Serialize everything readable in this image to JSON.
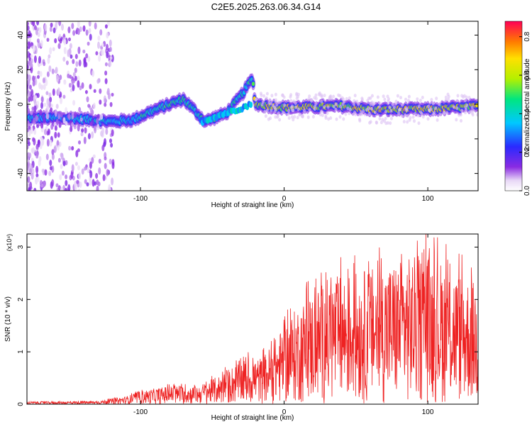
{
  "title": "C2E5.2025.263.06.34.G14",
  "chart_data": [
    {
      "type": "heatmap",
      "xlabel": "Height of straight line (km)",
      "ylabel": "Frequency (Hz)",
      "xlim": [
        -179,
        135
      ],
      "ylim": [
        -50,
        48
      ],
      "x_ticks": [
        -100,
        0,
        100
      ],
      "x_tick_labels": [
        "-100",
        "0",
        "100"
      ],
      "y_ticks": [
        -40,
        -20,
        0,
        20,
        40
      ],
      "y_tick_labels": [
        "-40",
        "-20",
        "0",
        "20",
        "40"
      ],
      "colorbar": {
        "label": "Normalized spectral amplitude",
        "range": [
          0,
          0.88
        ],
        "ticks": [
          0.0,
          0.2,
          0.4,
          0.6,
          0.8
        ],
        "tick_labels": [
          "0.0",
          "0.2",
          "0.4",
          "0.6",
          "0.8"
        ]
      },
      "ridge": [
        {
          "height_km": -179,
          "freq_hz": -8
        },
        {
          "height_km": -150,
          "freq_hz": -8
        },
        {
          "height_km": -120,
          "freq_hz": -10
        },
        {
          "height_km": -105,
          "freq_hz": -9
        },
        {
          "height_km": -95,
          "freq_hz": -5
        },
        {
          "height_km": -80,
          "freq_hz": 0
        },
        {
          "height_km": -70,
          "freq_hz": 3
        },
        {
          "height_km": -55,
          "freq_hz": -10
        },
        {
          "height_km": -40,
          "freq_hz": -5
        },
        {
          "height_km": -30,
          "freq_hz": 5
        },
        {
          "height_km": -22,
          "freq_hz": 15
        },
        {
          "height_km": -20,
          "freq_hz": 0
        },
        {
          "height_km": 0,
          "freq_hz": -2
        },
        {
          "height_km": 40,
          "freq_hz": -1
        },
        {
          "height_km": 60,
          "freq_hz": -3
        },
        {
          "height_km": 100,
          "freq_hz": -3
        },
        {
          "height_km": 135,
          "freq_hz": -1
        }
      ]
    },
    {
      "type": "line",
      "xlabel": "Height of straight line (km)",
      "ylabel": "SNR (10 * v/v)",
      "y_multiplier": "(x10⁴)",
      "xlim": [
        -179,
        135
      ],
      "ylim": [
        0,
        3.25
      ],
      "x_ticks": [
        -100,
        0,
        100
      ],
      "x_tick_labels": [
        "-100",
        "0",
        "100"
      ],
      "y_ticks": [
        0,
        1,
        2,
        3
      ],
      "y_tick_labels": [
        "0",
        "1",
        "2",
        "3"
      ],
      "color": "#ee2222",
      "envelope": [
        {
          "height_km": -179,
          "snr": 0.05
        },
        {
          "height_km": -130,
          "snr": 0.06
        },
        {
          "height_km": -110,
          "snr": 0.15
        },
        {
          "height_km": -100,
          "snr": 0.25
        },
        {
          "height_km": -80,
          "snr": 0.35
        },
        {
          "height_km": -60,
          "snr": 0.35
        },
        {
          "height_km": -45,
          "snr": 0.55
        },
        {
          "height_km": -30,
          "snr": 0.85
        },
        {
          "height_km": -15,
          "snr": 0.9
        },
        {
          "height_km": 0,
          "snr": 1.5
        },
        {
          "height_km": 10,
          "snr": 1.9
        },
        {
          "height_km": 30,
          "snr": 2.4
        },
        {
          "height_km": 60,
          "snr": 2.6
        },
        {
          "height_km": 100,
          "snr": 2.9
        },
        {
          "height_km": 135,
          "snr": 2.3
        }
      ]
    }
  ]
}
